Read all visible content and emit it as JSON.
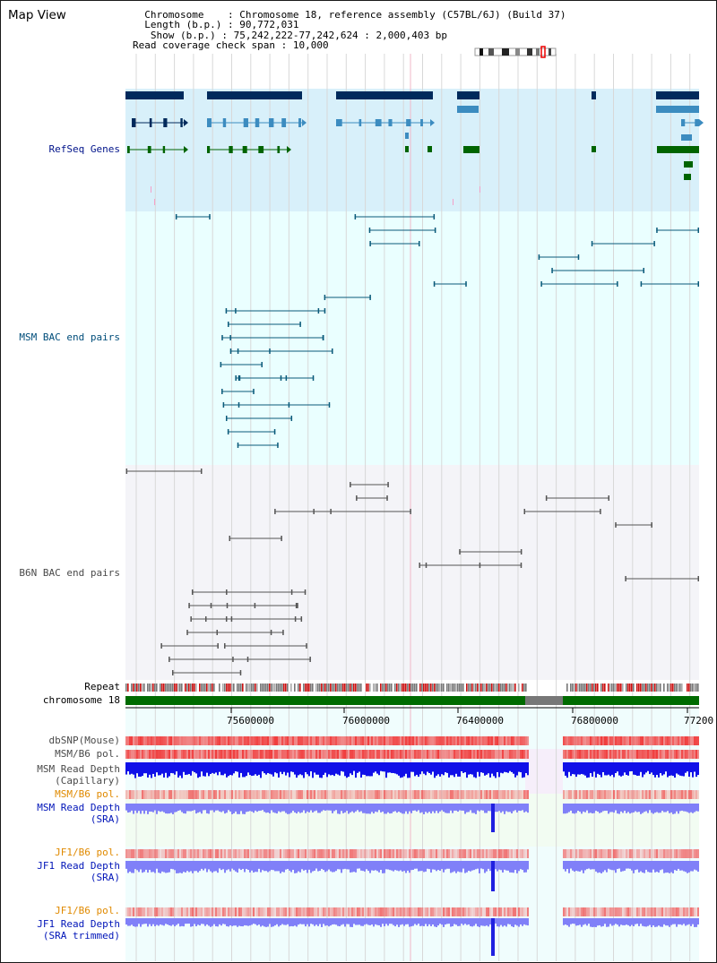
{
  "title": "Map View",
  "info": {
    "chromosome_label": "Chromosome",
    "chromosome_value": "Chromosome 18, reference assembly (C57BL/6J) (Build 37)",
    "length_label": "Length (b.p.)",
    "length_value": "90,772,031",
    "show_label": "Show (b.p.)",
    "show_value": "75,242,222-77,242,624 : 2,000,403 bp",
    "coverage_label": "Read coverage check span",
    "coverage_value": "10,000"
  },
  "tracks": {
    "refseq": "RefSeq Genes",
    "msm_bac": "MSM BAC end pairs",
    "b6n_bac": "B6N BAC end pairs",
    "repeat": "Repeat",
    "chromosome": "chromosome 18",
    "dbsnp": "dbSNP(Mouse)",
    "msm_b6_pol_1": "MSM/B6 pol.",
    "msm_read_depth_cap_1": "MSM Read Depth",
    "msm_read_depth_cap_2": "(Capillary)",
    "msm_b6_pol_2": "MSM/B6 pol.",
    "msm_read_depth_sra_1": "MSM Read Depth",
    "msm_read_depth_sra_2": "(SRA)",
    "jf1_b6_pol_1": "JF1/B6 pol.",
    "jf1_read_depth_sra_1": "JF1 Read Depth",
    "jf1_read_depth_sra_2": "(SRA)",
    "jf1_b6_pol_2": "JF1/B6 pol.",
    "jf1_read_depth_trim_1": "JF1 Read Depth",
    "jf1_read_depth_trim_2": "(SRA trimmed)"
  },
  "ruler_ticks": [
    "75600000",
    "76000000",
    "76400000",
    "76800000",
    "77200"
  ],
  "colors": {
    "refseq_bg": "#d8f0fa",
    "bac_bg": "#eaffff",
    "b6n_bg": "#f4f4f8",
    "gene_dark": "#002a5c",
    "gene_mid": "#3c8cc0",
    "gene_green": "#006400",
    "msm_pair": "#0a5a7a",
    "b6n_pair": "#555555",
    "chromosome_green": "#006b00",
    "snp_red": "#f04848",
    "depth_blue": "#1010e8",
    "depth_light": "#8080f8"
  }
}
